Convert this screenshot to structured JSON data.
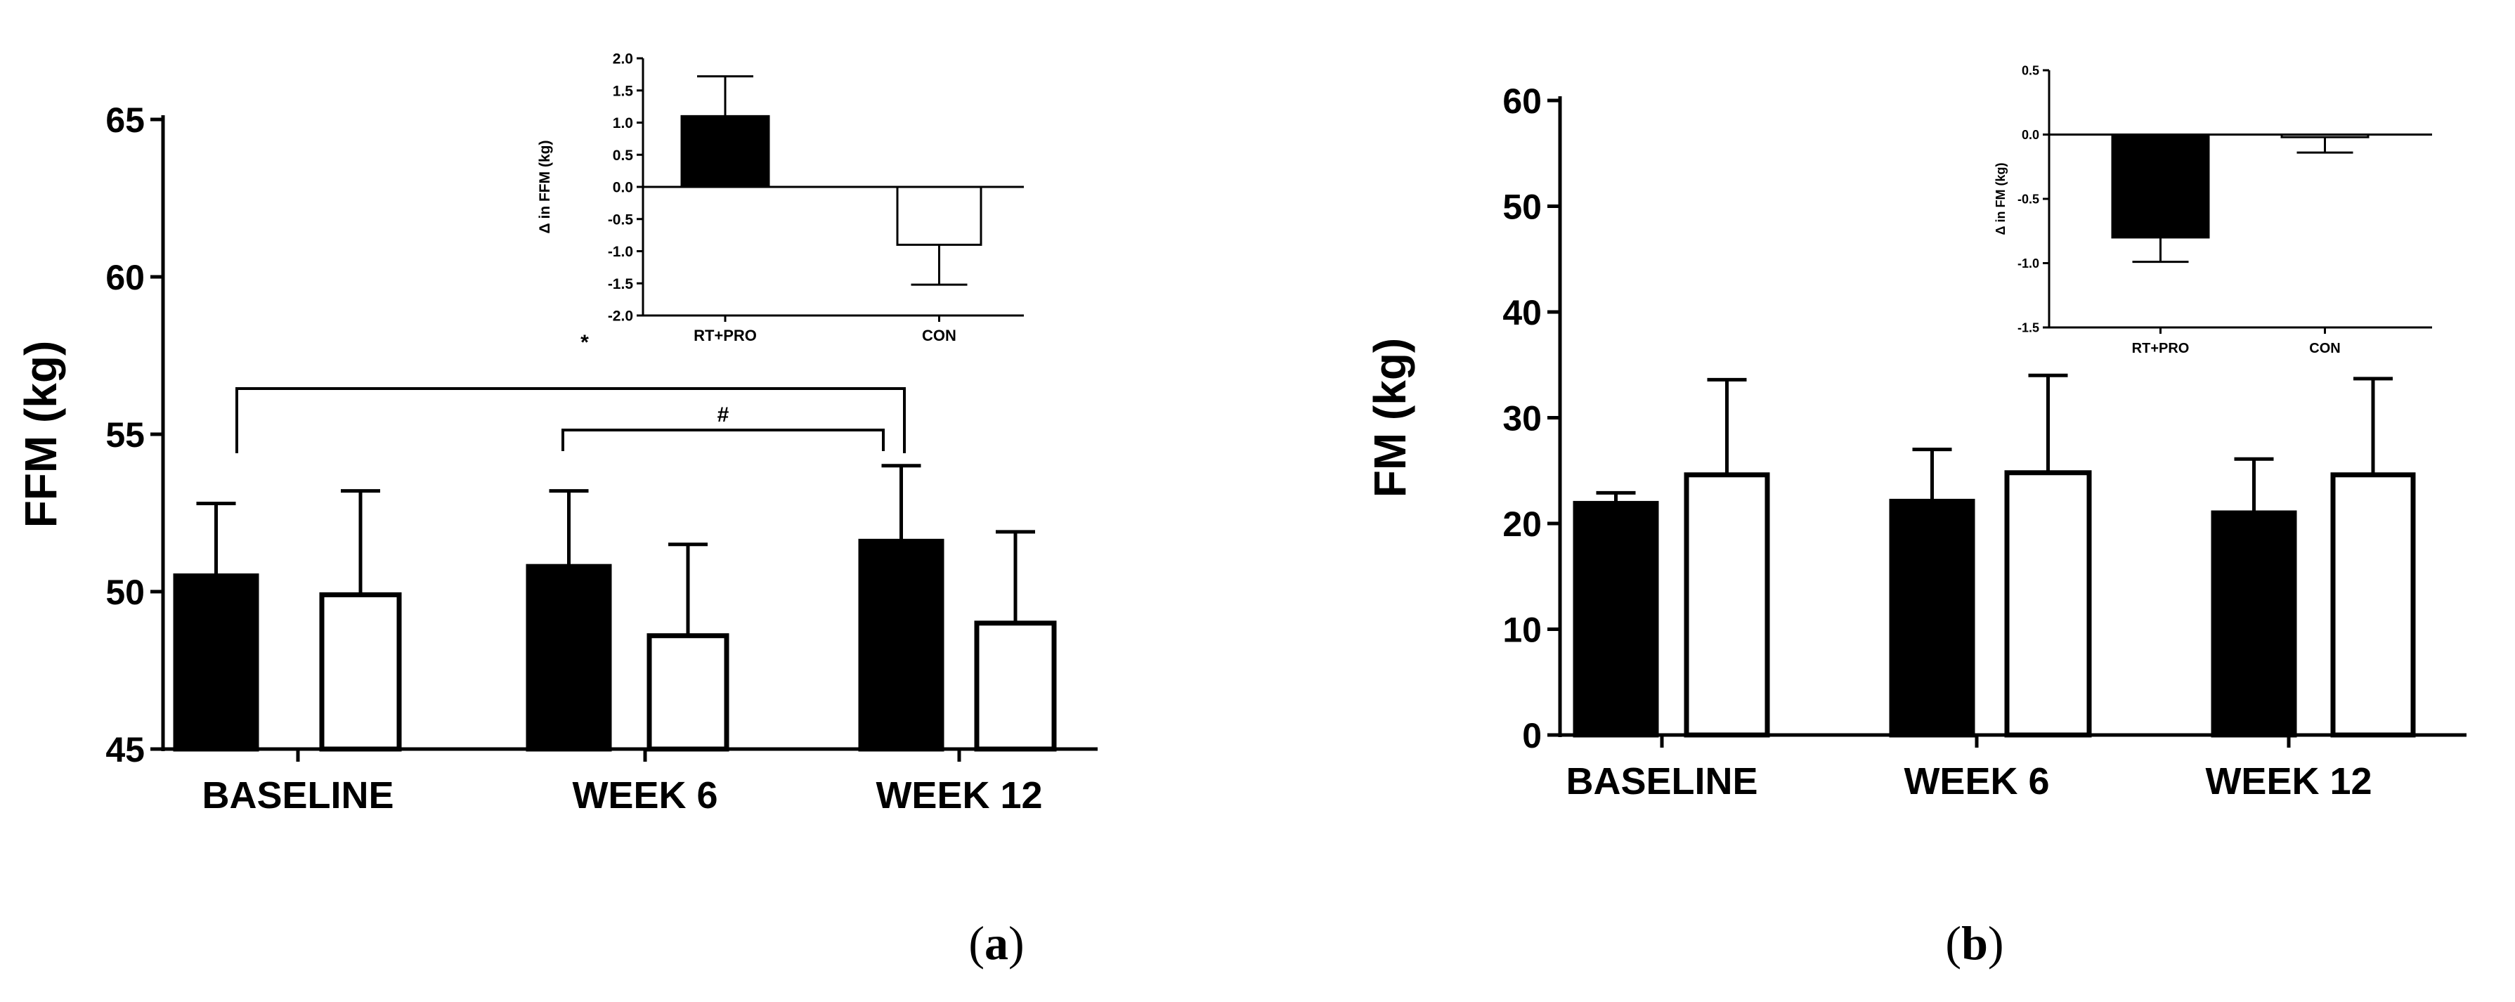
{
  "chart_data": [
    {
      "type": "bar",
      "panel_label": "a",
      "title": "",
      "xlabel": "",
      "ylabel": "FFM (kg)",
      "ylim": [
        45,
        65
      ],
      "yticks": [
        "45",
        "50",
        "55",
        "60",
        "65"
      ],
      "categories": [
        "BASELINE",
        "WEEK 6",
        "WEEK 12"
      ],
      "series": [
        {
          "name": "RT+PRO",
          "fill": "#000000",
          "values": [
            50.5,
            50.8,
            51.6
          ],
          "errors": [
            2.3,
            2.4,
            2.4
          ]
        },
        {
          "name": "CON",
          "fill": "#ffffff",
          "values": [
            49.9,
            48.6,
            49.0
          ],
          "errors": [
            3.3,
            2.9,
            2.9
          ]
        }
      ],
      "annotations": [
        {
          "type": "bracket",
          "label": "",
          "from_category": 0,
          "to_category": 2
        },
        {
          "type": "bracket",
          "label": "#",
          "from_category": 1,
          "to_category": 2
        }
      ],
      "inset": {
        "type": "bar",
        "ylabel": "Δ in FFM (kg)",
        "ylim": [
          -2.0,
          2.0
        ],
        "yticks": [
          "-2.0",
          "-1.5",
          "-1.0",
          "-0.5",
          "0.0",
          "0.5",
          "1.0",
          "1.5",
          "2.0"
        ],
        "categories": [
          "RT+PRO",
          "CON"
        ],
        "values": [
          1.1,
          -0.9
        ],
        "errors": [
          0.62,
          0.62
        ],
        "fills": [
          "#000000",
          "#ffffff"
        ],
        "marker": "*"
      }
    },
    {
      "type": "bar",
      "panel_label": "b",
      "title": "",
      "xlabel": "",
      "ylabel": "FM (kg)",
      "ylim": [
        0,
        60
      ],
      "yticks": [
        "0",
        "10",
        "20",
        "30",
        "40",
        "50",
        "60"
      ],
      "categories": [
        "BASELINE",
        "WEEK 6",
        "WEEK 12"
      ],
      "series": [
        {
          "name": "RT+PRO",
          "fill": "#000000",
          "values": [
            21.9,
            22.1,
            21.0
          ],
          "errors": [
            1.0,
            4.9,
            5.1
          ]
        },
        {
          "name": "CON",
          "fill": "#ffffff",
          "values": [
            24.6,
            24.8,
            24.6
          ],
          "errors": [
            9.0,
            9.2,
            9.1
          ]
        }
      ],
      "inset": {
        "type": "bar",
        "ylabel": "Δ in FM (kg)",
        "ylim": [
          -1.5,
          0.5
        ],
        "yticks": [
          "-1.5",
          "-1.0",
          "-0.5",
          "0.0",
          "0.5"
        ],
        "categories": [
          "RT+PRO",
          "CON"
        ],
        "values": [
          -0.8,
          -0.02
        ],
        "errors": [
          0.19,
          0.12
        ],
        "fills": [
          "#000000",
          "#ffffff"
        ]
      }
    }
  ],
  "captions": {
    "a": "(a)",
    "b": "(b)"
  }
}
